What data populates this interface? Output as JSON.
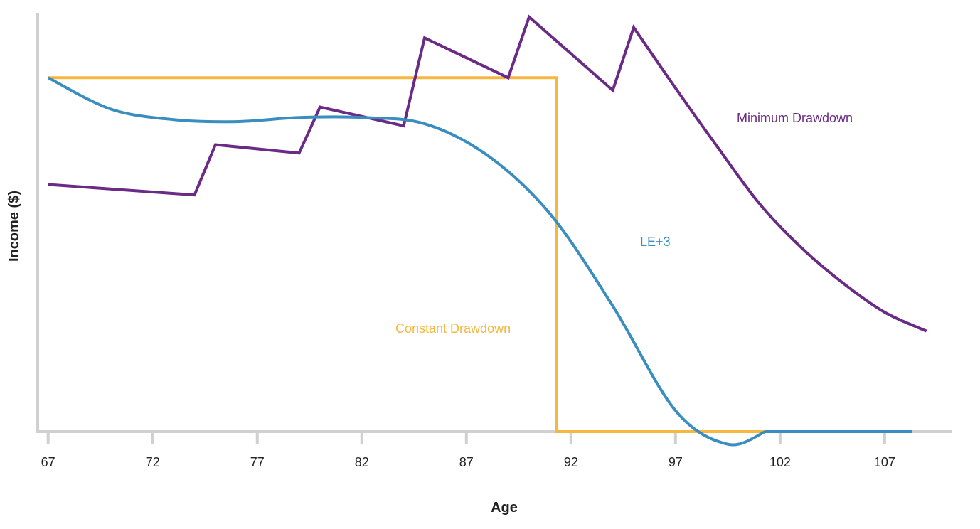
{
  "chart_data": {
    "type": "line",
    "xlabel": "Age",
    "ylabel": "Income ($)",
    "xlim": [
      66.5,
      110.2
    ],
    "ylim": [
      0,
      100
    ],
    "x_ticks": [
      67,
      72,
      77,
      82,
      87,
      92,
      97,
      102,
      107
    ],
    "y_tick_labels_shown": false,
    "grid": false,
    "legend": "none (series labeled directly on chart)",
    "series": [
      {
        "name": "Minimum Drawdown",
        "color": "#6a2a86",
        "x": [
          67,
          74,
          75,
          79,
          80,
          84,
          85,
          89,
          90,
          94,
          95,
          97,
          99,
          101,
          103,
          105,
          107,
          109
        ],
        "y": [
          59,
          56.5,
          68.5,
          66.5,
          77.5,
          73,
          94,
          84.5,
          99,
          81.5,
          96.5,
          82,
          68,
          54.5,
          44,
          35.5,
          28.5,
          24
        ]
      },
      {
        "name": "LE+3",
        "color": "#3a8dbf",
        "x": [
          67,
          70,
          73,
          76,
          79,
          82,
          85,
          88,
          91,
          94,
          97,
          99.5,
          101.3,
          102,
          108.3
        ],
        "y": [
          84.5,
          77,
          74.5,
          74,
          75,
          75,
          73.5,
          66,
          52,
          30,
          5,
          -3,
          0,
          0,
          0
        ]
      },
      {
        "name": "Constant Drawdown",
        "color": "#f5b740",
        "x": [
          67,
          91.3,
          91.3,
          101.3
        ],
        "y": [
          84.5,
          84.5,
          0,
          0
        ]
      }
    ],
    "labels": {
      "minimum": "Minimum Drawdown",
      "le3": "LE+3",
      "constant": "Constant Drawdown"
    }
  }
}
